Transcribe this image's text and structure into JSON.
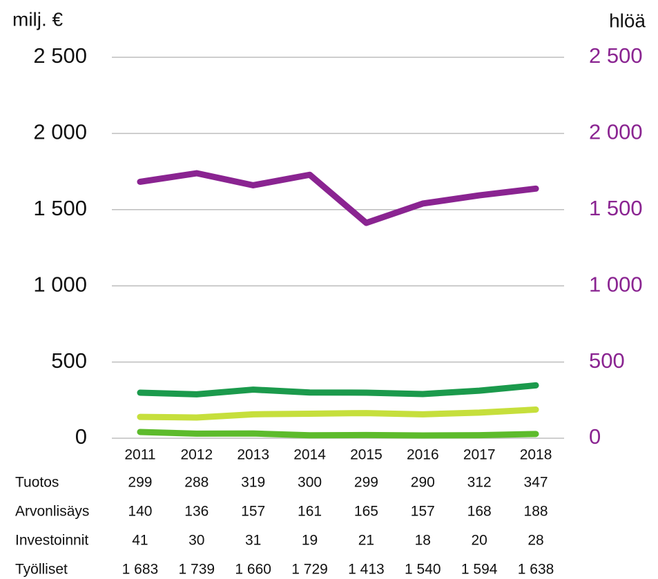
{
  "chart_data": {
    "type": "line",
    "y_label": "milj. €",
    "y2_label": "hlöä",
    "categories": [
      "2011",
      "2012",
      "2013",
      "2014",
      "2015",
      "2016",
      "2017",
      "2018"
    ],
    "ylim": [
      0,
      2500
    ],
    "yticks": [
      0,
      500,
      {
        "value": 1000,
        "label": "1 000"
      },
      {
        "value": 1500,
        "label": "1 500"
      },
      {
        "value": 2000,
        "label": "2 000"
      },
      {
        "value": 2500,
        "label": "2 500"
      }
    ],
    "y2lim": [
      0,
      2500
    ],
    "y2ticks": [
      0,
      500,
      {
        "value": 1000,
        "label": "1 000"
      },
      {
        "value": 1500,
        "label": "1 500"
      },
      {
        "value": 2000,
        "label": "2 000"
      },
      {
        "value": 2500,
        "label": "2 500"
      }
    ],
    "grid": true,
    "series": [
      {
        "name": "Tuotos",
        "color": "#1b9a4c",
        "values": [
          299,
          288,
          319,
          300,
          299,
          290,
          312,
          347
        ]
      },
      {
        "name": "Arvonlisäys",
        "color": "#c6df3c",
        "values": [
          140,
          136,
          157,
          161,
          165,
          157,
          168,
          188
        ]
      },
      {
        "name": "Investoinnit",
        "color": "#5dbb2c",
        "values": [
          41,
          30,
          31,
          19,
          21,
          18,
          20,
          28
        ]
      },
      {
        "name": "Työlliset",
        "color": "#8a2491",
        "axis": "y2",
        "values": [
          1683,
          1739,
          1660,
          1729,
          1413,
          1540,
          1594,
          1638
        ],
        "value_labels": [
          "1 683",
          "1 739",
          "1 660",
          "1 729",
          "1 413",
          "1 540",
          "1 594",
          "1 638"
        ]
      }
    ]
  }
}
